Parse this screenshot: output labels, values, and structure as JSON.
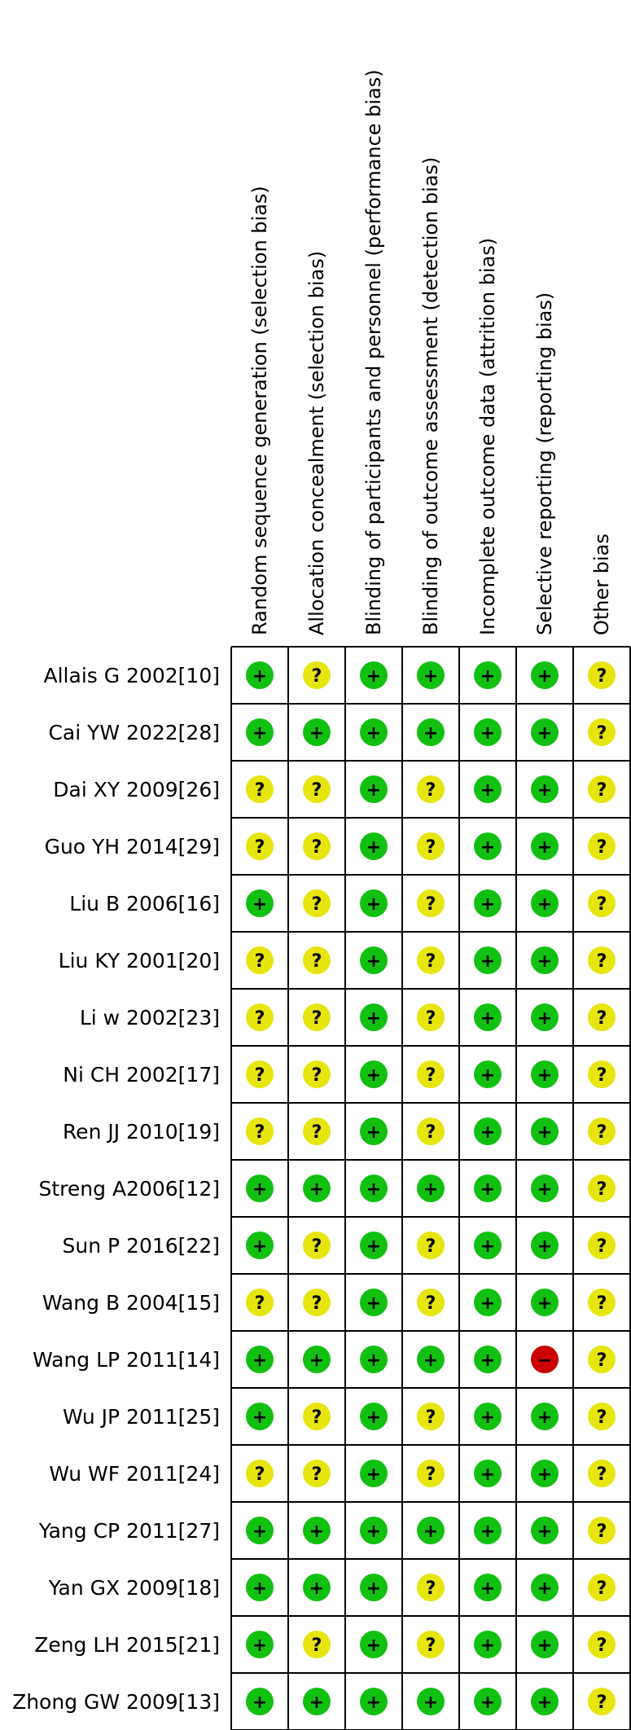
{
  "chart_data": {
    "type": "table",
    "columns": [
      "Random sequence generation (selection bias)",
      "Allocation concealment (selection bias)",
      "Blinding of participants and personnel (performance bias)",
      "Blinding of outcome assessment (detection bias)",
      "Incomplete outcome data (attrition bias)",
      "Selective reporting (reporting bias)",
      "Other bias"
    ],
    "rows": [
      {
        "study": "Allais G 2002[10]",
        "ratings": [
          "low",
          "unclear",
          "low",
          "low",
          "low",
          "low",
          "unclear"
        ]
      },
      {
        "study": "Cai YW 2022[28]",
        "ratings": [
          "low",
          "low",
          "low",
          "low",
          "low",
          "low",
          "unclear"
        ]
      },
      {
        "study": "Dai XY 2009[26]",
        "ratings": [
          "unclear",
          "unclear",
          "low",
          "unclear",
          "low",
          "low",
          "unclear"
        ]
      },
      {
        "study": "Guo YH 2014[29]",
        "ratings": [
          "unclear",
          "unclear",
          "low",
          "unclear",
          "low",
          "low",
          "unclear"
        ]
      },
      {
        "study": "Liu B 2006[16]",
        "ratings": [
          "low",
          "unclear",
          "low",
          "unclear",
          "low",
          "low",
          "unclear"
        ]
      },
      {
        "study": "Liu KY 2001[20]",
        "ratings": [
          "unclear",
          "unclear",
          "low",
          "unclear",
          "low",
          "low",
          "unclear"
        ]
      },
      {
        "study": "Li w 2002[23]",
        "ratings": [
          "unclear",
          "unclear",
          "low",
          "unclear",
          "low",
          "low",
          "unclear"
        ]
      },
      {
        "study": "Ni CH 2002[17]",
        "ratings": [
          "unclear",
          "unclear",
          "low",
          "unclear",
          "low",
          "low",
          "unclear"
        ]
      },
      {
        "study": "Ren JJ 2010[19]",
        "ratings": [
          "unclear",
          "unclear",
          "low",
          "unclear",
          "low",
          "low",
          "unclear"
        ]
      },
      {
        "study": "Streng A2006[12]",
        "ratings": [
          "low",
          "low",
          "low",
          "low",
          "low",
          "low",
          "unclear"
        ]
      },
      {
        "study": "Sun P 2016[22]",
        "ratings": [
          "low",
          "unclear",
          "low",
          "unclear",
          "low",
          "low",
          "unclear"
        ]
      },
      {
        "study": "Wang B 2004[15]",
        "ratings": [
          "unclear",
          "unclear",
          "low",
          "unclear",
          "low",
          "low",
          "unclear"
        ]
      },
      {
        "study": "Wang LP 2011[14]",
        "ratings": [
          "low",
          "low",
          "low",
          "low",
          "low",
          "high",
          "unclear"
        ]
      },
      {
        "study": "Wu JP 2011[25]",
        "ratings": [
          "low",
          "unclear",
          "low",
          "unclear",
          "low",
          "low",
          "unclear"
        ]
      },
      {
        "study": "Wu WF 2011[24]",
        "ratings": [
          "unclear",
          "unclear",
          "low",
          "unclear",
          "low",
          "low",
          "unclear"
        ]
      },
      {
        "study": "Yang CP 2011[27]",
        "ratings": [
          "low",
          "low",
          "low",
          "low",
          "low",
          "low",
          "unclear"
        ]
      },
      {
        "study": "Yan GX 2009[18]",
        "ratings": [
          "low",
          "low",
          "low",
          "unclear",
          "low",
          "low",
          "unclear"
        ]
      },
      {
        "study": "Zeng LH 2015[21]",
        "ratings": [
          "low",
          "unclear",
          "low",
          "unclear",
          "low",
          "low",
          "unclear"
        ]
      },
      {
        "study": "Zhong GW 2009[13]",
        "ratings": [
          "low",
          "low",
          "low",
          "low",
          "low",
          "low",
          "unclear"
        ]
      }
    ],
    "legend": {
      "low": {
        "symbol": "+",
        "color": "#12c012"
      },
      "unclear": {
        "symbol": "?",
        "color": "#e6e60e"
      },
      "high": {
        "symbol": "−",
        "color": "#cc0000"
      }
    },
    "grid_color": "#000000"
  }
}
